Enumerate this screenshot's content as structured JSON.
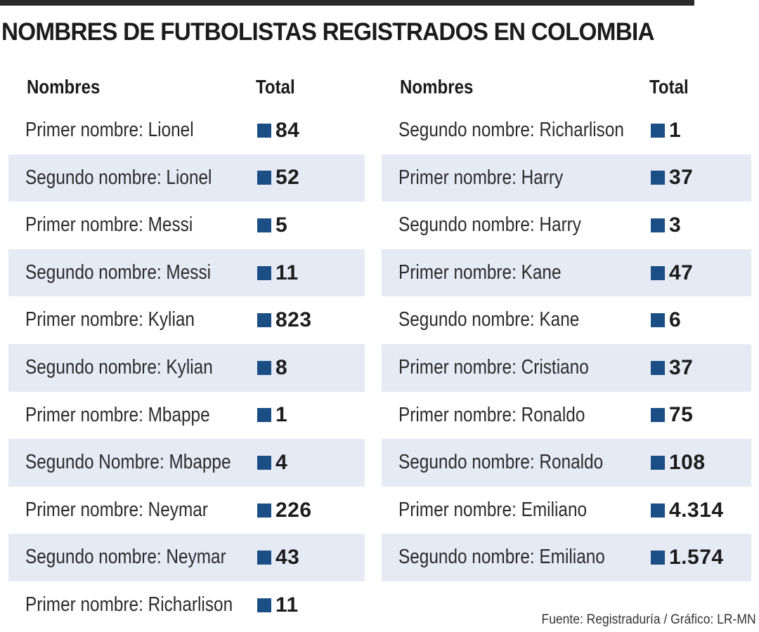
{
  "title": "NOMBRES DE FUTBOLISTAS REGISTRADOS EN COLOMBIA",
  "source": "Fuente: Registraduría / Gráfico: LR-MN",
  "colors": {
    "marker": "#1a4e84",
    "row_shade": "#e6eaf5",
    "top_rule": "#2a2a2a"
  },
  "chart_data": {
    "type": "table",
    "columns": [
      "Nombres",
      "Total"
    ],
    "left": [
      {
        "name": "Primer nombre: Lionel",
        "total": "84"
      },
      {
        "name": "Segundo nombre: Lionel",
        "total": "52"
      },
      {
        "name": "Primer nombre: Messi",
        "total": "5"
      },
      {
        "name": "Segundo nombre: Messi",
        "total": "11"
      },
      {
        "name": "Primer nombre: Kylian",
        "total": "823"
      },
      {
        "name": "Segundo nombre: Kylian",
        "total": "8"
      },
      {
        "name": "Primer nombre: Mbappe",
        "total": "1"
      },
      {
        "name": "Segundo Nombre: Mbappe",
        "total": "4"
      },
      {
        "name": "Primer nombre: Neymar",
        "total": "226"
      },
      {
        "name": "Segundo nombre: Neymar",
        "total": "43"
      },
      {
        "name": "Primer nombre: Richarlison",
        "total": "11"
      }
    ],
    "right": [
      {
        "name": "Segundo nombre: Richarlison",
        "total": "1"
      },
      {
        "name": "Primer nombre: Harry",
        "total": "37"
      },
      {
        "name": "Segundo nombre: Harry",
        "total": "3"
      },
      {
        "name": "Primer nombre: Kane",
        "total": "47"
      },
      {
        "name": "Segundo nombre: Kane",
        "total": "6"
      },
      {
        "name": "Primer nombre: Cristiano",
        "total": "37"
      },
      {
        "name": "Primer nombre: Ronaldo",
        "total": "75"
      },
      {
        "name": "Segundo nombre: Ronaldo",
        "total": "108"
      },
      {
        "name": "Primer nombre: Emiliano",
        "total": "4.314"
      },
      {
        "name": "Segundo nombre: Emiliano",
        "total": "1.574"
      }
    ]
  }
}
